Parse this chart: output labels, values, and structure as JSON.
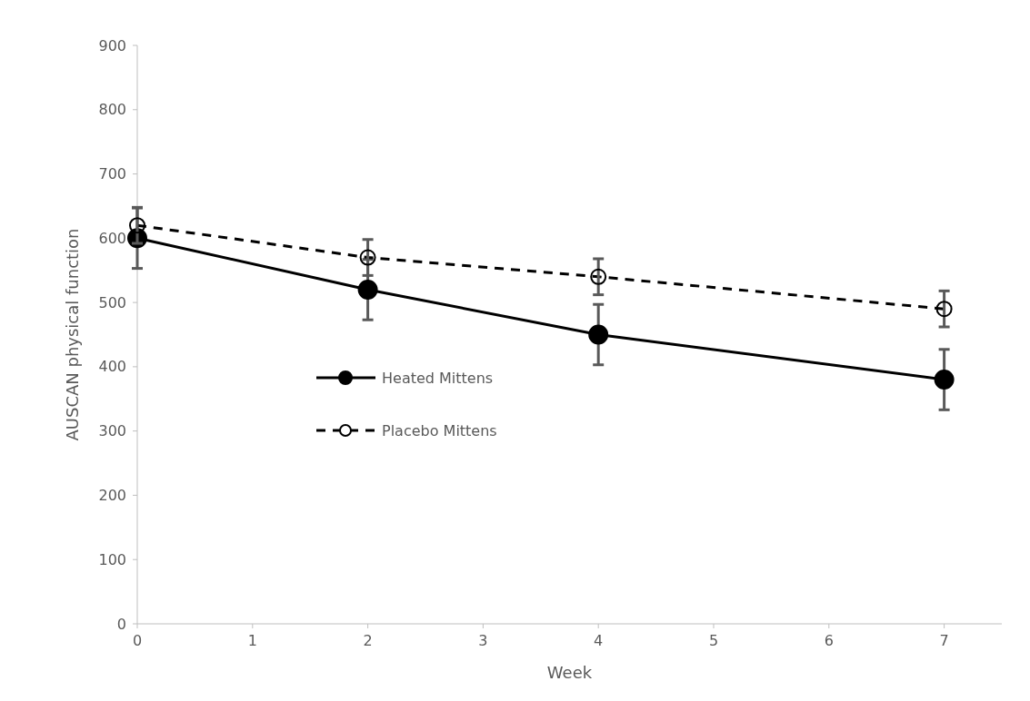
{
  "chart_data": {
    "type": "line",
    "xlabel": "Week",
    "ylabel": "AUSCAN physical function",
    "x": [
      0,
      2,
      4,
      7
    ],
    "xlim": [
      0,
      7.5
    ],
    "xticks": [
      0,
      1,
      2,
      3,
      4,
      5,
      6,
      7
    ],
    "ylim": [
      0,
      900
    ],
    "yticks": [
      0,
      100,
      200,
      300,
      400,
      500,
      600,
      700,
      800,
      900
    ],
    "grid": false,
    "legend": "left",
    "marker": "circle",
    "series": [
      {
        "name": "Heated Mittens",
        "color": "#000000",
        "line_style": "solid",
        "values": [
          600,
          520,
          450,
          380
        ],
        "errors": [
          47,
          47,
          47,
          47
        ]
      },
      {
        "name": "Placebo Mittens",
        "color": "#000000",
        "line_style": "dashed",
        "values": [
          620,
          570,
          540,
          490
        ],
        "errors": [
          28,
          28,
          28,
          28
        ]
      }
    ]
  }
}
